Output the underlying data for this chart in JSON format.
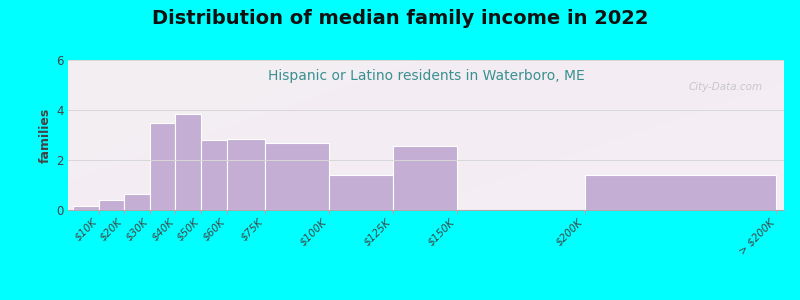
{
  "title": "Distribution of median family income in 2022",
  "subtitle": "Hispanic or Latino residents in Waterboro, ME",
  "watermark": "City-Data.com",
  "ylabel": "families",
  "background_outer": "#00FFFF",
  "bar_color": "#c4aed4",
  "bar_edge_color": "#ffffff",
  "categories": [
    "$10K",
    "$20K",
    "$30K",
    "$40K",
    "$50K",
    "$60K",
    "$75K",
    "$100K",
    "$125K",
    "$150K",
    "$200K",
    "> $200K"
  ],
  "values": [
    0.18,
    0.42,
    0.65,
    3.5,
    3.85,
    2.8,
    2.85,
    2.7,
    1.42,
    2.55,
    0.0,
    1.42
  ],
  "left_edges": [
    0,
    10,
    20,
    30,
    40,
    50,
    60,
    75,
    100,
    125,
    150,
    200
  ],
  "right_edges": [
    10,
    20,
    30,
    40,
    50,
    60,
    75,
    100,
    125,
    150,
    200,
    275
  ],
  "ylim": [
    0,
    6
  ],
  "yticks": [
    0,
    2,
    4,
    6
  ],
  "grid_color": "#d8d8d8",
  "title_fontsize": 14,
  "subtitle_fontsize": 10,
  "tick_fontsize": 7.5,
  "ylabel_fontsize": 9
}
